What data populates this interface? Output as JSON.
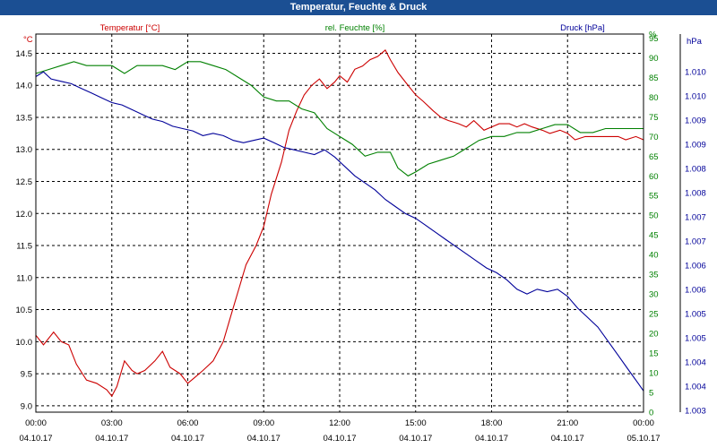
{
  "window": {
    "title": "Temperatur, Feuchte & Druck"
  },
  "colors": {
    "temperature": "#cc0000",
    "humidity": "#008000",
    "pressure": "#000099",
    "grid": "#000000",
    "title_bar": "#1b4f93"
  },
  "chart_data": {
    "type": "line",
    "title": "Temperatur, Feuchte & Druck",
    "grid": true,
    "legend_placement": "top",
    "x_ticks": [
      {
        "time": "00:00",
        "date": "04.10.17"
      },
      {
        "time": "03:00",
        "date": "04.10.17"
      },
      {
        "time": "06:00",
        "date": "04.10.17"
      },
      {
        "time": "09:00",
        "date": "04.10.17"
      },
      {
        "time": "12:00",
        "date": "04.10.17"
      },
      {
        "time": "15:00",
        "date": "04.10.17"
      },
      {
        "time": "18:00",
        "date": "04.10.17"
      },
      {
        "time": "21:00",
        "date": "04.10.17"
      },
      {
        "time": "00:00",
        "date": "05.10.17"
      }
    ],
    "x_hours_range": [
      0,
      24
    ],
    "axes": {
      "temperature": {
        "unit": "°C",
        "ylim": [
          8.9,
          14.8
        ],
        "ticks": [
          "9.0",
          "9.5",
          "10.0",
          "10.5",
          "11.0",
          "11.5",
          "12.0",
          "12.5",
          "13.0",
          "13.5",
          "14.0",
          "14.5"
        ]
      },
      "humidity": {
        "unit": "%",
        "ylim": [
          0,
          96
        ],
        "ticks": [
          "0",
          "5",
          "10",
          "15",
          "20",
          "25",
          "30",
          "35",
          "40",
          "45",
          "50",
          "55",
          "60",
          "65",
          "70",
          "75",
          "80",
          "85",
          "90",
          "95",
          "%"
        ]
      },
      "pressure": {
        "unit": "hPa",
        "ylim": [
          1003,
          1011
        ],
        "ticks": [
          "1.003",
          "1.004",
          "1.004",
          "1.005",
          "1.005",
          "1.006",
          "1.006",
          "1.007",
          "1.007",
          "1.008",
          "1.008",
          "1.009",
          "1.009",
          "1.010",
          "1.010"
        ]
      }
    },
    "series": [
      {
        "name": "Temperatur [°C]",
        "axis": "temperature",
        "x": [
          0,
          0.3,
          0.7,
          1.0,
          1.3,
          1.6,
          2.0,
          2.4,
          2.8,
          3.0,
          3.2,
          3.5,
          3.8,
          4.0,
          4.3,
          4.7,
          5.0,
          5.3,
          5.7,
          6.0,
          6.3,
          6.6,
          7.0,
          7.4,
          7.7,
          8.0,
          8.3,
          8.7,
          9.0,
          9.3,
          9.7,
          10.0,
          10.3,
          10.6,
          10.9,
          11.2,
          11.5,
          11.8,
          12.0,
          12.3,
          12.6,
          12.9,
          13.2,
          13.5,
          13.8,
          14.0,
          14.3,
          14.6,
          14.8,
          15.0,
          15.3,
          15.7,
          16.0,
          16.3,
          16.7,
          17.0,
          17.3,
          17.7,
          18.0,
          18.3,
          18.7,
          19.0,
          19.3,
          19.6,
          20.0,
          20.3,
          20.7,
          21.0,
          21.3,
          21.7,
          22.0,
          22.3,
          22.7,
          23.0,
          23.3,
          23.7,
          24.0
        ],
        "values": [
          10.1,
          9.95,
          10.15,
          10.0,
          9.95,
          9.65,
          9.4,
          9.35,
          9.25,
          9.15,
          9.3,
          9.7,
          9.55,
          9.5,
          9.55,
          9.7,
          9.85,
          9.6,
          9.5,
          9.35,
          9.45,
          9.55,
          9.7,
          10.0,
          10.4,
          10.8,
          11.2,
          11.5,
          11.8,
          12.3,
          12.8,
          13.3,
          13.6,
          13.85,
          14.0,
          14.1,
          13.95,
          14.05,
          14.15,
          14.05,
          14.25,
          14.3,
          14.4,
          14.45,
          14.55,
          14.4,
          14.2,
          14.05,
          13.95,
          13.85,
          13.75,
          13.6,
          13.5,
          13.45,
          13.4,
          13.35,
          13.45,
          13.3,
          13.35,
          13.4,
          13.4,
          13.35,
          13.4,
          13.35,
          13.3,
          13.25,
          13.3,
          13.25,
          13.15,
          13.2,
          13.2,
          13.2,
          13.2,
          13.2,
          13.15,
          13.2,
          13.15
        ],
        "color": "#cc0000"
      },
      {
        "name": "rel. Feuchte [%]",
        "axis": "humidity",
        "x": [
          0,
          0.5,
          1.0,
          1.5,
          2.0,
          2.5,
          3.0,
          3.5,
          4.0,
          4.5,
          5.0,
          5.5,
          6.0,
          6.5,
          7.0,
          7.5,
          8.0,
          8.5,
          9.0,
          9.5,
          10.0,
          10.5,
          11.0,
          11.5,
          12.0,
          12.5,
          13.0,
          13.5,
          14.0,
          14.3,
          14.7,
          15.0,
          15.5,
          16.0,
          16.5,
          17.0,
          17.5,
          18.0,
          18.5,
          19.0,
          19.5,
          20.0,
          20.5,
          21.0,
          21.5,
          22.0,
          22.5,
          23.0,
          23.5,
          24.0
        ],
        "values": [
          86,
          87,
          88,
          89,
          88,
          88,
          88,
          86,
          88,
          88,
          88,
          87,
          89,
          89,
          88,
          87,
          85,
          83,
          80,
          79,
          79,
          77,
          76,
          72,
          70,
          68,
          65,
          66,
          66,
          62,
          60,
          61,
          63,
          64,
          65,
          67,
          69,
          70,
          70,
          71,
          71,
          72,
          73,
          73,
          71,
          71,
          72,
          72,
          72,
          72
        ],
        "color": "#008000"
      },
      {
        "name": "Druck [hPa]",
        "axis": "pressure",
        "x": [
          0,
          0.3,
          0.6,
          1.0,
          1.4,
          1.8,
          2.2,
          2.6,
          3.0,
          3.4,
          3.8,
          4.2,
          4.6,
          5.0,
          5.4,
          5.8,
          6.2,
          6.6,
          7.0,
          7.4,
          7.8,
          8.2,
          8.6,
          9.0,
          9.4,
          9.8,
          10.2,
          10.6,
          11.0,
          11.4,
          11.8,
          12.2,
          12.6,
          13.0,
          13.4,
          13.8,
          14.2,
          14.6,
          15.0,
          15.4,
          15.8,
          16.2,
          16.6,
          17.0,
          17.4,
          17.8,
          18.2,
          18.6,
          19.0,
          19.4,
          19.8,
          20.2,
          20.6,
          21.0,
          21.4,
          21.8,
          22.2,
          22.6,
          23.0,
          23.4,
          23.8,
          24.0
        ],
        "values": [
          1010.1,
          1010.2,
          1010.05,
          1010.0,
          1009.95,
          1009.85,
          1009.75,
          1009.65,
          1009.55,
          1009.5,
          1009.4,
          1009.3,
          1009.2,
          1009.15,
          1009.05,
          1009.0,
          1008.95,
          1008.85,
          1008.9,
          1008.85,
          1008.75,
          1008.7,
          1008.75,
          1008.8,
          1008.7,
          1008.6,
          1008.55,
          1008.5,
          1008.45,
          1008.55,
          1008.4,
          1008.2,
          1008.0,
          1007.85,
          1007.7,
          1007.5,
          1007.35,
          1007.2,
          1007.1,
          1006.95,
          1006.8,
          1006.65,
          1006.5,
          1006.35,
          1006.2,
          1006.05,
          1005.95,
          1005.8,
          1005.6,
          1005.5,
          1005.6,
          1005.55,
          1005.6,
          1005.45,
          1005.2,
          1005.0,
          1004.8,
          1004.5,
          1004.2,
          1003.9,
          1003.6,
          1003.45
        ],
        "color": "#000099"
      }
    ]
  }
}
